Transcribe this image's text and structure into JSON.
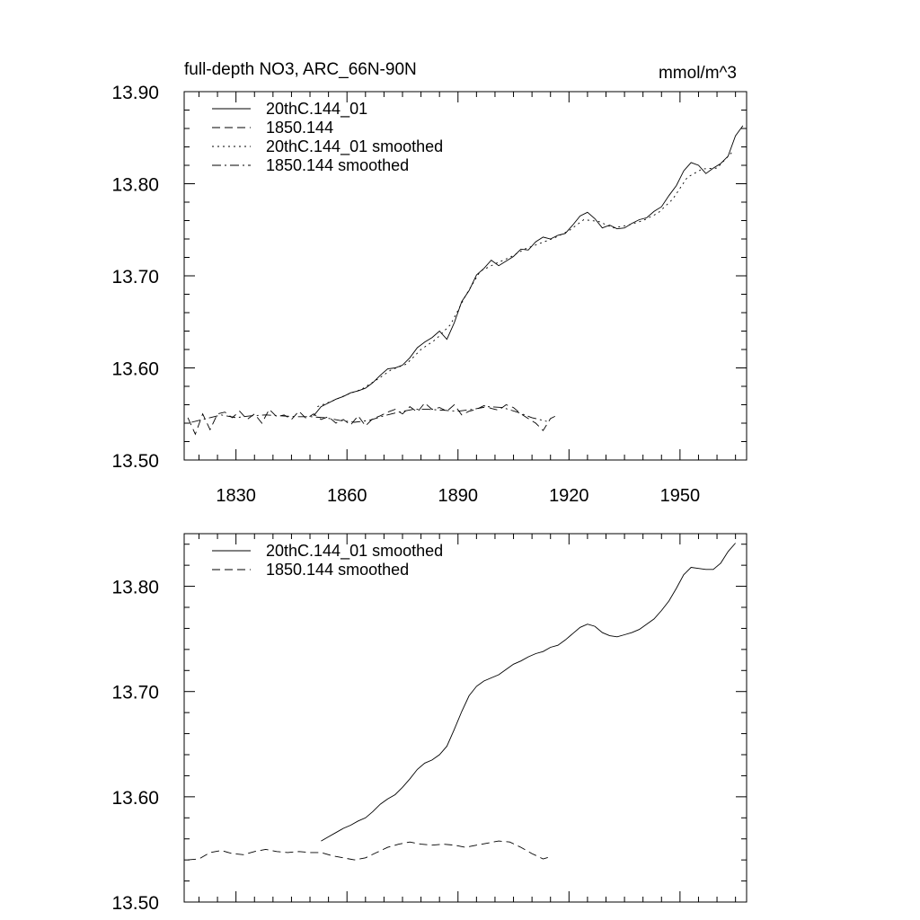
{
  "chart_data": [
    {
      "type": "line",
      "title": "full-depth NO3, ARC_66N-90N",
      "units": "mmol/m^3",
      "xlabel": "",
      "ylabel": "",
      "xlim": [
        1816,
        1968
      ],
      "ylim": [
        13.5,
        13.9
      ],
      "xticks": [
        1830,
        1860,
        1890,
        1920,
        1950
      ],
      "xtick_labels": [
        "1830",
        "1860",
        "1890",
        "1920",
        "1950"
      ],
      "yticks": [
        13.5,
        13.6,
        13.7,
        13.8,
        13.9
      ],
      "ytick_labels": [
        "13.50",
        "13.60",
        "13.70",
        "13.80",
        "13.90"
      ],
      "grid": false,
      "legend_position": "top-left",
      "series": [
        {
          "name": "20thC.144_01",
          "style": "solid",
          "x": [
            1851,
            1853,
            1855,
            1857,
            1859,
            1861,
            1863,
            1865,
            1867,
            1869,
            1871,
            1873,
            1875,
            1877,
            1879,
            1881,
            1883,
            1885,
            1887,
            1889,
            1891,
            1893,
            1895,
            1897,
            1899,
            1901,
            1903,
            1905,
            1907,
            1909,
            1911,
            1913,
            1915,
            1917,
            1919,
            1921,
            1923,
            1925,
            1927,
            1929,
            1931,
            1933,
            1935,
            1937,
            1939,
            1941,
            1943,
            1945,
            1947,
            1949,
            1951,
            1953,
            1955,
            1957,
            1959,
            1961,
            1963,
            1965,
            1967
          ],
          "y": [
            13.548,
            13.558,
            13.562,
            13.566,
            13.569,
            13.573,
            13.575,
            13.578,
            13.584,
            13.592,
            13.599,
            13.6,
            13.603,
            13.611,
            13.622,
            13.628,
            13.633,
            13.64,
            13.631,
            13.649,
            13.672,
            13.684,
            13.701,
            13.708,
            13.717,
            13.711,
            13.716,
            13.721,
            13.729,
            13.728,
            13.737,
            13.742,
            13.74,
            13.744,
            13.746,
            13.755,
            13.765,
            13.769,
            13.762,
            13.752,
            13.755,
            13.751,
            13.752,
            13.757,
            13.761,
            13.763,
            13.77,
            13.775,
            13.787,
            13.798,
            13.814,
            13.823,
            13.82,
            13.811,
            13.817,
            13.822,
            13.83,
            13.852,
            13.863
          ]
        },
        {
          "name": "1850.144",
          "style": "dashed",
          "x": [
            1817,
            1819,
            1821,
            1823,
            1825,
            1827,
            1829,
            1831,
            1833,
            1835,
            1837,
            1839,
            1841,
            1843,
            1845,
            1847,
            1849,
            1851,
            1853,
            1855,
            1857,
            1859,
            1861,
            1863,
            1865,
            1867,
            1869,
            1871,
            1873,
            1875,
            1877,
            1879,
            1881,
            1883,
            1885,
            1887,
            1889,
            1891,
            1893,
            1895,
            1897,
            1899,
            1901,
            1903,
            1905,
            1907,
            1909,
            1911,
            1913,
            1915,
            1917
          ],
          "y": [
            13.546,
            13.528,
            13.55,
            13.533,
            13.55,
            13.552,
            13.546,
            13.553,
            13.544,
            13.55,
            13.54,
            13.555,
            13.547,
            13.549,
            13.544,
            13.553,
            13.545,
            13.55,
            13.544,
            13.547,
            13.54,
            13.544,
            13.538,
            13.548,
            13.537,
            13.545,
            13.548,
            13.552,
            13.555,
            13.55,
            13.558,
            13.552,
            13.562,
            13.555,
            13.557,
            13.553,
            13.56,
            13.549,
            13.553,
            13.555,
            13.559,
            13.556,
            13.554,
            13.56,
            13.557,
            13.55,
            13.545,
            13.54,
            13.532,
            13.545,
            13.549
          ]
        },
        {
          "name": "20thC.144_01 smoothed",
          "style": "dotted",
          "x": [
            1852,
            1856,
            1860,
            1864,
            1868,
            1872,
            1876,
            1880,
            1884,
            1888,
            1892,
            1896,
            1900,
            1904,
            1908,
            1912,
            1916,
            1920,
            1924,
            1928,
            1932,
            1936,
            1940,
            1944,
            1948,
            1952,
            1956,
            1960,
            1964
          ],
          "y": [
            13.558,
            13.564,
            13.571,
            13.577,
            13.587,
            13.598,
            13.604,
            13.62,
            13.631,
            13.647,
            13.678,
            13.705,
            13.713,
            13.72,
            13.729,
            13.735,
            13.741,
            13.749,
            13.761,
            13.759,
            13.752,
            13.755,
            13.76,
            13.768,
            13.783,
            13.807,
            13.816,
            13.817,
            13.834
          ]
        },
        {
          "name": "1850.144 smoothed",
          "style": "dashdot",
          "x": [
            1818,
            1822,
            1826,
            1830,
            1834,
            1838,
            1842,
            1846,
            1850,
            1854,
            1858,
            1862,
            1866,
            1870,
            1874,
            1878,
            1882,
            1886,
            1890,
            1894,
            1898,
            1902,
            1906,
            1910,
            1914
          ],
          "y": [
            13.541,
            13.545,
            13.549,
            13.546,
            13.548,
            13.549,
            13.548,
            13.547,
            13.547,
            13.546,
            13.543,
            13.541,
            13.543,
            13.548,
            13.552,
            13.555,
            13.555,
            13.554,
            13.553,
            13.555,
            13.558,
            13.557,
            13.552,
            13.546,
            13.542
          ]
        }
      ]
    },
    {
      "type": "line",
      "xlim": [
        1816,
        1968
      ],
      "ylim": [
        13.5,
        13.85
      ],
      "xticks": [
        1830,
        1860,
        1890,
        1920,
        1950
      ],
      "yticks": [
        13.5,
        13.6,
        13.7,
        13.8
      ],
      "ytick_labels": [
        "13.50",
        "13.60",
        "13.70",
        "13.80"
      ],
      "grid": false,
      "legend_position": "top-left",
      "series": [
        {
          "name": "20thC.144_01 smoothed",
          "style": "solid",
          "x": [
            1853,
            1855,
            1857,
            1859,
            1861,
            1863,
            1865,
            1867,
            1869,
            1871,
            1873,
            1875,
            1877,
            1879,
            1881,
            1883,
            1885,
            1887,
            1889,
            1891,
            1893,
            1895,
            1897,
            1899,
            1901,
            1903,
            1905,
            1907,
            1909,
            1911,
            1913,
            1915,
            1917,
            1919,
            1921,
            1923,
            1925,
            1927,
            1929,
            1931,
            1933,
            1935,
            1937,
            1939,
            1941,
            1943,
            1945,
            1947,
            1949,
            1951,
            1953,
            1955,
            1957,
            1959,
            1961,
            1963,
            1965
          ],
          "y": [
            13.558,
            13.562,
            13.566,
            13.57,
            13.573,
            13.577,
            13.58,
            13.586,
            13.593,
            13.598,
            13.602,
            13.609,
            13.617,
            13.626,
            13.632,
            13.635,
            13.64,
            13.648,
            13.664,
            13.681,
            13.696,
            13.705,
            13.71,
            13.713,
            13.716,
            13.721,
            13.726,
            13.729,
            13.733,
            13.736,
            13.738,
            13.742,
            13.744,
            13.749,
            13.755,
            13.761,
            13.764,
            13.762,
            13.756,
            13.753,
            13.752,
            13.754,
            13.756,
            13.759,
            13.764,
            13.769,
            13.777,
            13.786,
            13.798,
            13.811,
            13.818,
            13.817,
            13.816,
            13.816,
            13.822,
            13.833,
            13.841
          ]
        },
        {
          "name": "1850.144 smoothed",
          "style": "dashed",
          "x": [
            1817,
            1820,
            1823,
            1826,
            1829,
            1832,
            1835,
            1838,
            1841,
            1844,
            1847,
            1850,
            1853,
            1856,
            1859,
            1862,
            1865,
            1868,
            1871,
            1874,
            1877,
            1880,
            1883,
            1886,
            1889,
            1892,
            1895,
            1898,
            1901,
            1904,
            1907,
            1910,
            1913,
            1915
          ],
          "y": [
            13.54,
            13.541,
            13.547,
            13.549,
            13.546,
            13.545,
            13.548,
            13.55,
            13.548,
            13.547,
            13.548,
            13.547,
            13.547,
            13.544,
            13.542,
            13.54,
            13.542,
            13.547,
            13.552,
            13.555,
            13.557,
            13.555,
            13.554,
            13.555,
            13.554,
            13.552,
            13.554,
            13.556,
            13.558,
            13.557,
            13.552,
            13.546,
            13.541,
            13.543
          ]
        }
      ]
    }
  ]
}
